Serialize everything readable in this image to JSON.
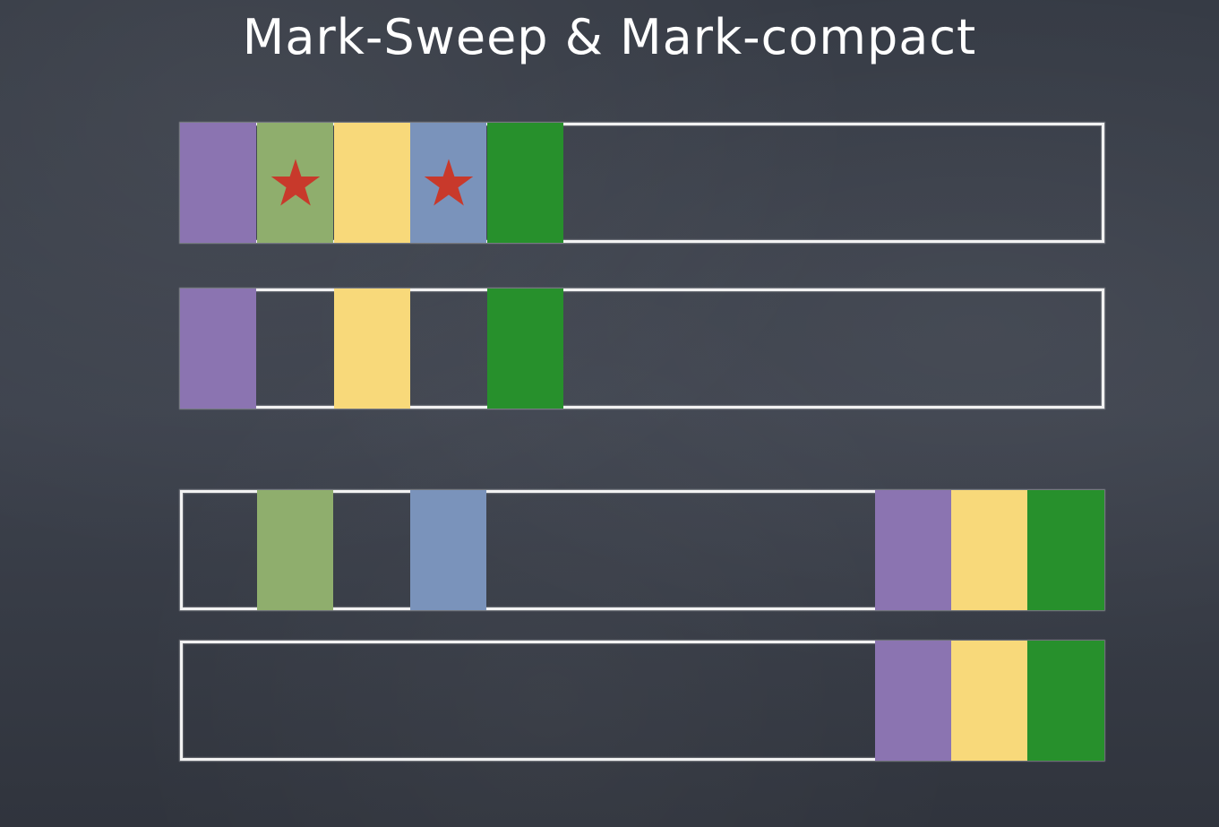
{
  "title": "Mark-Sweep & Mark-compact",
  "colors": {
    "purple": "#8b74b1",
    "light_green": "#8fae6d",
    "yellow": "#f8d97a",
    "light_blue": "#7a93bb",
    "green": "#27902c",
    "star": "#c8392b",
    "outline": "#f2f2f2",
    "background": "#3a3f4a"
  },
  "rows": [
    {
      "name": "marked-heap",
      "blocks": [
        {
          "color": "purple",
          "marked": false
        },
        {
          "color": "light_green",
          "marked": true,
          "icon": "star-icon"
        },
        {
          "color": "yellow",
          "marked": false
        },
        {
          "color": "light_blue",
          "marked": true,
          "icon": "star-icon"
        },
        {
          "color": "green",
          "marked": false
        }
      ]
    },
    {
      "name": "after-sweep",
      "blocks": [
        {
          "color": "purple"
        },
        {
          "color": "empty"
        },
        {
          "color": "yellow"
        },
        {
          "color": "empty"
        },
        {
          "color": "green"
        }
      ]
    },
    {
      "name": "split-heap",
      "blocks": [
        {
          "color": "empty"
        },
        {
          "color": "light_green"
        },
        {
          "color": "empty"
        },
        {
          "color": "light_blue"
        },
        {
          "color": "purple"
        },
        {
          "color": "yellow"
        },
        {
          "color": "green"
        }
      ]
    },
    {
      "name": "after-compact",
      "blocks": [
        {
          "color": "purple"
        },
        {
          "color": "yellow"
        },
        {
          "color": "green"
        }
      ]
    }
  ]
}
